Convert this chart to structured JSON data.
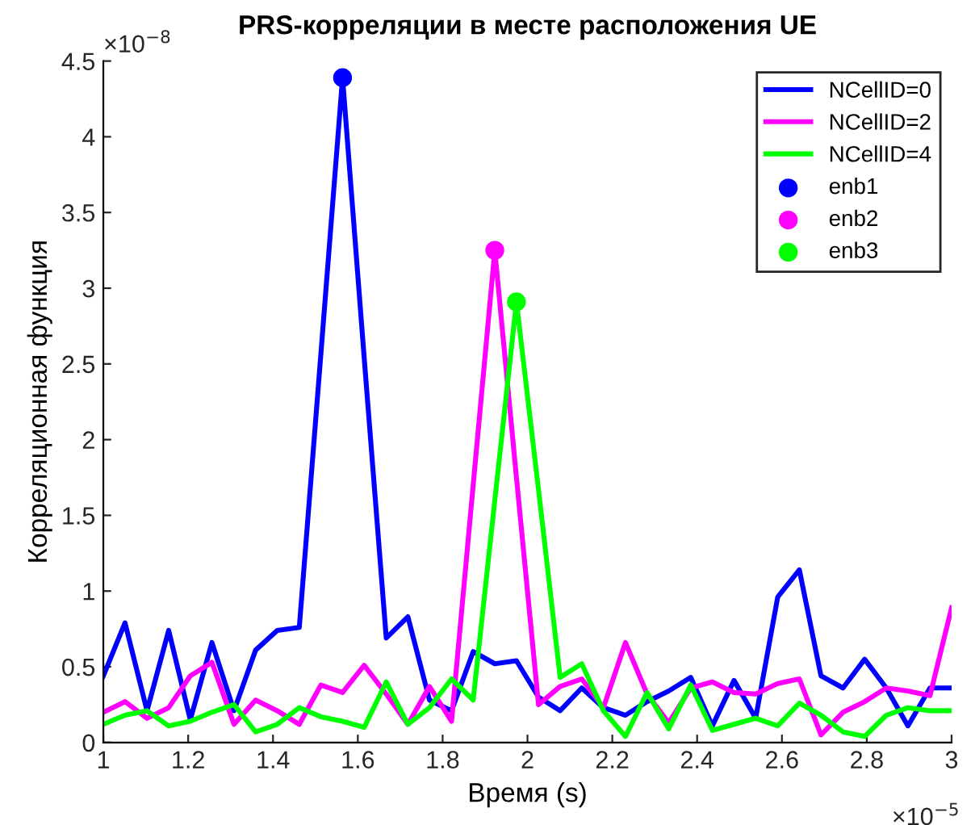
{
  "chart_data": {
    "type": "line",
    "title": "PRS-корреляции в месте расположения UE",
    "xlabel": "Время (s)",
    "ylabel": "Корреляционная функция",
    "annotations": [
      "×10$^{−8}$",
      "×10$^{−5}$"
    ],
    "x": [
      1.0,
      1.051,
      1.103,
      1.154,
      1.205,
      1.256,
      1.308,
      1.359,
      1.41,
      1.462,
      1.513,
      1.564,
      1.615,
      1.667,
      1.718,
      1.769,
      1.821,
      1.872,
      1.923,
      1.974,
      2.026,
      2.077,
      2.128,
      2.179,
      2.231,
      2.282,
      2.333,
      2.385,
      2.436,
      2.487,
      2.538,
      2.59,
      2.641,
      2.692,
      2.744,
      2.795,
      2.846,
      2.897,
      2.949,
      3.0
    ],
    "series": [
      {
        "name": "NCellID=0",
        "color": "#0000ff",
        "values": [
          0.44,
          0.79,
          0.21,
          0.74,
          0.15,
          0.66,
          0.21,
          0.61,
          0.74,
          0.76,
          2.57,
          4.39,
          2.54,
          0.69,
          0.83,
          0.28,
          0.21,
          0.6,
          0.52,
          0.54,
          0.3,
          0.21,
          0.36,
          0.23,
          0.18,
          0.27,
          0.34,
          0.43,
          0.11,
          0.41,
          0.16,
          0.96,
          1.14,
          0.44,
          0.36,
          0.55,
          0.36,
          0.11,
          0.36,
          0.36
        ]
      },
      {
        "name": "NCellID=2",
        "color": "#ff00ff",
        "values": [
          0.2,
          0.27,
          0.16,
          0.23,
          0.44,
          0.53,
          0.12,
          0.28,
          0.21,
          0.12,
          0.38,
          0.33,
          0.51,
          0.32,
          0.12,
          0.37,
          0.14,
          1.7,
          3.25,
          1.75,
          0.25,
          0.37,
          0.42,
          0.23,
          0.66,
          0.32,
          0.13,
          0.36,
          0.4,
          0.33,
          0.32,
          0.39,
          0.42,
          0.05,
          0.2,
          0.27,
          0.36,
          0.34,
          0.31,
          0.89
        ]
      },
      {
        "name": "NCellID=4",
        "color": "#00ff00",
        "values": [
          0.12,
          0.18,
          0.21,
          0.11,
          0.14,
          0.2,
          0.25,
          0.07,
          0.12,
          0.23,
          0.17,
          0.14,
          0.1,
          0.4,
          0.12,
          0.23,
          0.42,
          0.28,
          1.6,
          2.91,
          1.67,
          0.43,
          0.52,
          0.21,
          0.04,
          0.33,
          0.09,
          0.38,
          0.08,
          0.12,
          0.16,
          0.11,
          0.26,
          0.18,
          0.07,
          0.04,
          0.18,
          0.23,
          0.21,
          0.21
        ]
      },
      {
        "name": "enb1",
        "type": "scatter",
        "marker": "circle",
        "color": "#0000ff",
        "x": [
          1.564
        ],
        "values": [
          4.39
        ]
      },
      {
        "name": "enb2",
        "type": "scatter",
        "marker": "circle",
        "color": "#ff00ff",
        "x": [
          1.923
        ],
        "values": [
          3.25
        ]
      },
      {
        "name": "enb3",
        "type": "scatter",
        "marker": "circle",
        "color": "#00ff00",
        "x": [
          1.974
        ],
        "values": [
          2.91
        ]
      }
    ],
    "xlim": [
      1,
      3
    ],
    "xticks": [
      1,
      1.2,
      1.4,
      1.6,
      1.8,
      2,
      2.2,
      2.4,
      2.6,
      2.8,
      3
    ],
    "ylim": [
      0,
      4.5
    ],
    "yticks": [
      0,
      0.5,
      1,
      1.5,
      2,
      2.5,
      3,
      3.5,
      4,
      4.5
    ],
    "grid": false,
    "legend": "top right",
    "marker": "none",
    "line_style": "solid"
  }
}
